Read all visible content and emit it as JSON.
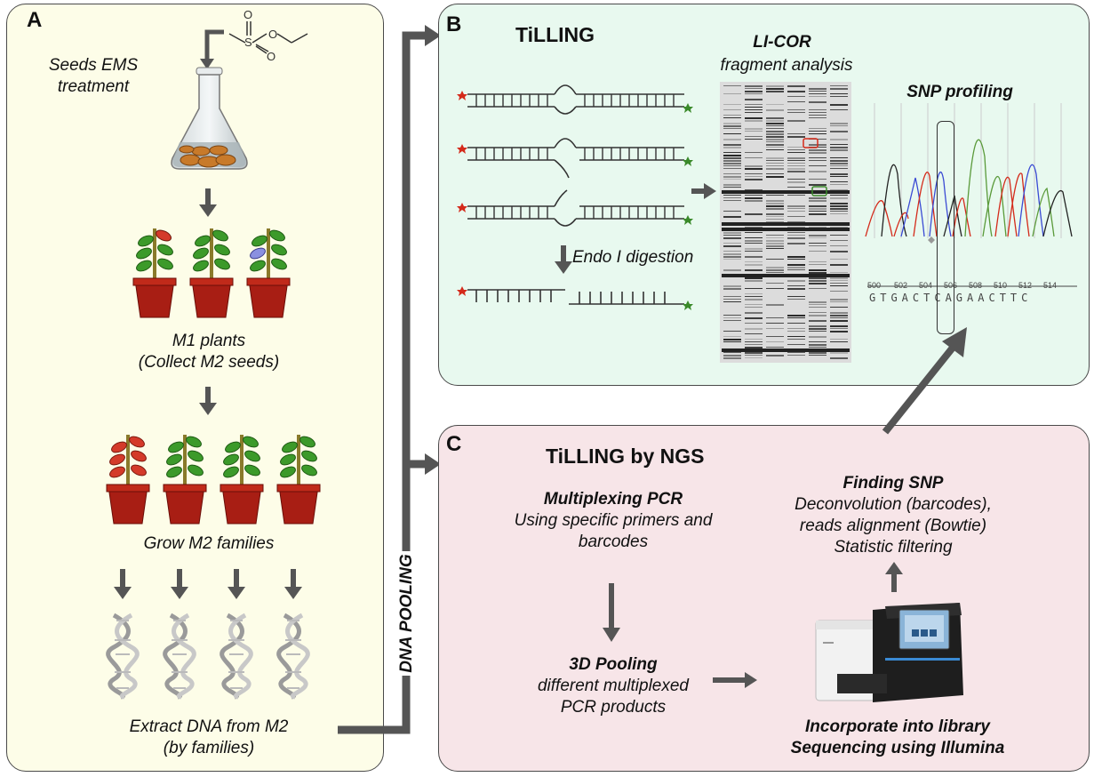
{
  "panel_a": {
    "letter": "A",
    "seeds_label": "Seeds EMS\ntreatment",
    "m1_label_1": "M1 plants",
    "m1_label_2": "(Collect M2 seeds)",
    "m2_label": "Grow M2 families",
    "extract_label_1": "Extract DNA from M2",
    "extract_label_2": "(by families)"
  },
  "pooling_label": "DNA POOLING",
  "panel_b": {
    "letter": "B",
    "title": "TiLLING",
    "licor_title": "LI-COR",
    "licor_sub": "fragment analysis",
    "endo_label": "Endo I digestion",
    "snp_title": "SNP profiling",
    "seq_ticks": [
      "500",
      "502",
      "504",
      "506",
      "508",
      "510",
      "512",
      "514"
    ],
    "seq_letters": "GTGACTCAGAACTTC"
  },
  "panel_c": {
    "letter": "C",
    "title": "TiLLING by NGS",
    "mpcr_title": "Multiplexing PCR",
    "mpcr_sub_1": "Using specific primers and",
    "mpcr_sub_2": "barcodes",
    "pool_title": "3D Pooling",
    "pool_sub_1": "different multiplexed",
    "pool_sub_2": "PCR products",
    "snp_title": "Finding SNP",
    "snp_sub_1": "Deconvolution (barcodes),",
    "snp_sub_2": "reads alignment (Bowtie)",
    "snp_sub_3": "Statistic filtering",
    "lib_1": "Incorporate into library",
    "lib_2": "Sequencing using Illumina"
  },
  "colors": {
    "panel_a_bg": "#fdfde8",
    "panel_b_bg": "#e8f9ef",
    "panel_c_bg": "#f7e5e8",
    "arrow": "#555555",
    "red_mark": "#d42a1a",
    "green_mark": "#3a8a2a"
  }
}
